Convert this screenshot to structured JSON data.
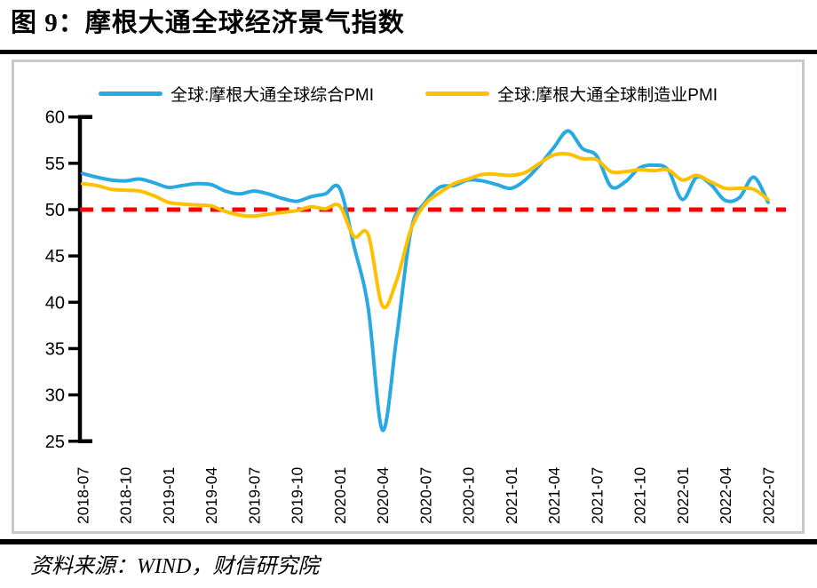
{
  "page": {
    "title": "图 9：摩根大通全球经济景气指数",
    "source": "资料来源：WIND，财信研究院"
  },
  "chart_data": {
    "type": "line",
    "title": "摩根大通全球经济景气指数",
    "legend_position": "top",
    "grid": false,
    "ylim": [
      25,
      60
    ],
    "y_ticks": [
      25,
      30,
      35,
      40,
      45,
      50,
      55,
      60
    ],
    "x": [
      "2018-07",
      "2018-08",
      "2018-09",
      "2018-10",
      "2018-11",
      "2018-12",
      "2019-01",
      "2019-02",
      "2019-03",
      "2019-04",
      "2019-05",
      "2019-06",
      "2019-07",
      "2019-08",
      "2019-09",
      "2019-10",
      "2019-11",
      "2019-12",
      "2020-01",
      "2020-02",
      "2020-03",
      "2020-04",
      "2020-05",
      "2020-06",
      "2020-07",
      "2020-08",
      "2020-09",
      "2020-10",
      "2020-11",
      "2020-12",
      "2021-01",
      "2021-02",
      "2021-03",
      "2021-04",
      "2021-05",
      "2021-06",
      "2021-07",
      "2021-08",
      "2021-09",
      "2021-10",
      "2021-11",
      "2021-12",
      "2022-01",
      "2022-02",
      "2022-03",
      "2022-04",
      "2022-05",
      "2022-06",
      "2022-07"
    ],
    "x_tick_labels": [
      "2018-07",
      "2018-10",
      "2019-01",
      "2019-04",
      "2019-07",
      "2019-10",
      "2020-01",
      "2020-04",
      "2020-07",
      "2020-10",
      "2021-01",
      "2021-04",
      "2021-07",
      "2021-10",
      "2022-01",
      "2022-04",
      "2022-07"
    ],
    "series": [
      {
        "name": "全球:摩根大通全球综合PMI",
        "color": "#29A9E1",
        "values": [
          53.9,
          53.5,
          53.2,
          53.1,
          53.3,
          52.9,
          52.4,
          52.6,
          52.8,
          52.7,
          52.0,
          51.7,
          52.0,
          51.7,
          51.2,
          50.9,
          51.4,
          51.7,
          52.3,
          46.1,
          39.4,
          26.2,
          36.3,
          47.8,
          50.8,
          52.4,
          52.6,
          53.2,
          53.1,
          52.7,
          52.3,
          53.2,
          54.8,
          56.7,
          58.5,
          56.6,
          55.8,
          52.5,
          53.0,
          54.5,
          54.8,
          54.3,
          51.1,
          53.5,
          52.7,
          51.0,
          51.3,
          53.5,
          50.8
        ]
      },
      {
        "name": "全球:摩根大通全球制造业PMI",
        "color": "#FFC000",
        "values": [
          52.8,
          52.6,
          52.2,
          52.1,
          52.0,
          51.5,
          50.8,
          50.6,
          50.5,
          50.4,
          49.8,
          49.4,
          49.3,
          49.5,
          49.7,
          49.9,
          50.3,
          50.1,
          50.4,
          47.1,
          47.3,
          39.6,
          42.4,
          47.9,
          50.6,
          51.8,
          52.8,
          53.3,
          53.8,
          53.8,
          53.7,
          54.0,
          55.0,
          55.9,
          56.0,
          55.5,
          55.4,
          54.1,
          54.1,
          54.3,
          54.2,
          54.3,
          53.2,
          53.7,
          53.0,
          52.3,
          52.3,
          52.2,
          51.1
        ]
      }
    ],
    "reference_line": {
      "value": 50,
      "color": "#FF0000",
      "style": "dashed"
    },
    "axis_color": "#000000"
  }
}
